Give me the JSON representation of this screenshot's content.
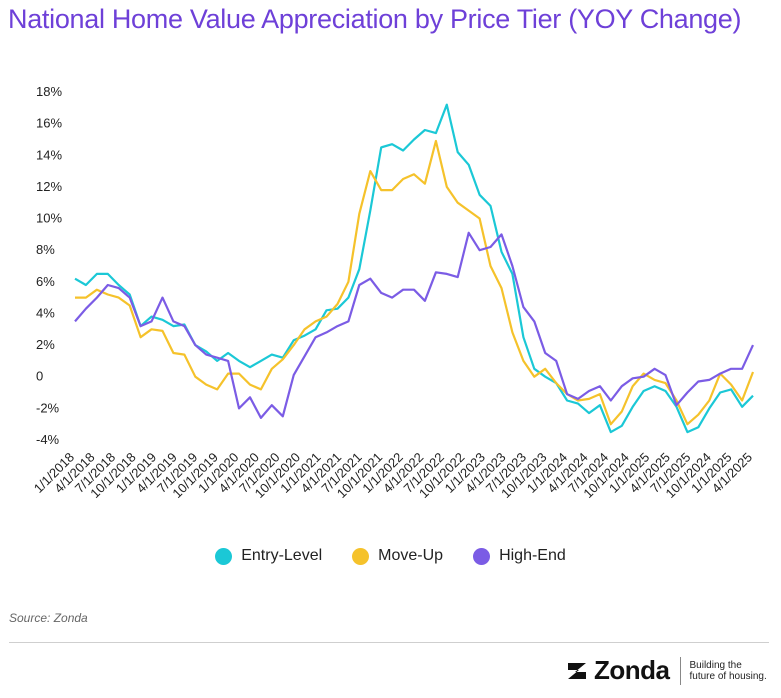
{
  "title": "National Home Value Appreciation by Price Tier (YOY Change)",
  "source": "Source: Zonda",
  "footer": {
    "brand": "Zonda",
    "tagline": "Building the future of housing.",
    "logo_icon": "zonda-z-mark-icon"
  },
  "legend": {
    "items": [
      {
        "label": "Entry-Level",
        "color": "#1bc8d6"
      },
      {
        "label": "Move-Up",
        "color": "#f5c22b"
      },
      {
        "label": "High-End",
        "color": "#7b5ce5"
      }
    ]
  },
  "chart_data": {
    "type": "line",
    "title": "National Home Value Appreciation by Price Tier (YOY Change)",
    "xlabel": "",
    "ylabel": "",
    "ylim": [
      -4,
      18
    ],
    "yticks": [
      -4,
      -2,
      0,
      2,
      4,
      6,
      8,
      10,
      12,
      14,
      16,
      18
    ],
    "ytick_labels": [
      "-4%",
      "-2%",
      "0",
      "2%",
      "4%",
      "6%",
      "8%",
      "10%",
      "12%",
      "14%",
      "16%",
      "18%"
    ],
    "x_tick_labels": [
      "1/1/2018",
      "4/1/2018",
      "7/1/2018",
      "10/1/2018",
      "1/1/2019",
      "4/1/2019",
      "7/1/2019",
      "10/1/2019",
      "1/1/2020",
      "4/1/2020",
      "7/1/2020",
      "10/1/2020",
      "1/1/2021",
      "4/1/2021",
      "7/1/2021",
      "10/1/2021",
      "1/1/2022",
      "4/1/2022",
      "7/1/2022",
      "10/1/2022",
      "1/1/2023",
      "4/1/2023",
      "7/1/2023",
      "10/1/2023",
      "1/1/2024",
      "4/1/2024",
      "7/1/2024",
      "10/1/2024",
      "1/1/2025",
      "4/1/2025",
      "7/1/2025",
      "10/1/2024",
      "1/1/2025",
      "4/1/2025"
    ],
    "grid": false,
    "legend_position": "bottom",
    "series": [
      {
        "name": "Entry-Level",
        "color": "#1bc8d6",
        "values": [
          6.2,
          5.8,
          6.5,
          6.5,
          5.8,
          5.2,
          3.2,
          3.8,
          3.6,
          3.2,
          3.3,
          2.0,
          1.6,
          1.0,
          1.5,
          1.0,
          0.6,
          1.0,
          1.4,
          1.2,
          2.3,
          2.6,
          3.0,
          4.2,
          4.3,
          5.0,
          6.8,
          10.5,
          14.5,
          14.7,
          14.3,
          15.0,
          15.6,
          15.4,
          17.2,
          14.2,
          13.4,
          11.5,
          10.8,
          7.9,
          6.5,
          2.5,
          0.5,
          0.0,
          -0.4,
          -1.5,
          -1.7,
          -2.3,
          -1.8,
          -3.5,
          -3.1,
          -1.9,
          -0.9,
          -0.6,
          -0.9,
          -1.9,
          -3.5,
          -3.2,
          -2.0,
          -1.0,
          -0.8,
          -1.9,
          -1.2
        ]
      },
      {
        "name": "Move-Up",
        "color": "#f5c22b",
        "values": [
          5.0,
          5.0,
          5.5,
          5.2,
          5.0,
          4.5,
          2.5,
          3.0,
          2.9,
          1.5,
          1.4,
          0.0,
          -0.5,
          -0.8,
          0.2,
          0.2,
          -0.5,
          -0.8,
          0.5,
          1.1,
          2.0,
          3.0,
          3.5,
          3.8,
          4.6,
          6.0,
          10.3,
          13.0,
          11.8,
          11.8,
          12.5,
          12.8,
          12.2,
          14.9,
          12.0,
          11.0,
          10.5,
          10.0,
          7.0,
          5.6,
          2.8,
          1.0,
          0.0,
          0.5,
          -0.4,
          -1.1,
          -1.5,
          -1.4,
          -1.1,
          -3.0,
          -2.2,
          -0.6,
          0.2,
          -0.2,
          -0.4,
          -1.5,
          -3.0,
          -2.4,
          -1.5,
          0.2,
          -0.5,
          -1.5,
          0.3
        ]
      },
      {
        "name": "High-End",
        "color": "#7b5ce5",
        "values": [
          3.5,
          4.3,
          5.0,
          5.8,
          5.6,
          5.0,
          3.2,
          3.5,
          5.0,
          3.5,
          3.2,
          2.0,
          1.4,
          1.2,
          1.0,
          -2.0,
          -1.3,
          -2.6,
          -1.8,
          -2.5,
          0.1,
          1.3,
          2.5,
          2.8,
          3.2,
          3.5,
          5.8,
          6.2,
          5.3,
          5.0,
          5.5,
          5.5,
          4.8,
          6.6,
          6.5,
          6.3,
          9.1,
          8.0,
          8.2,
          9.0,
          7.0,
          4.4,
          3.5,
          1.5,
          1.0,
          -1.1,
          -1.4,
          -0.9,
          -0.6,
          -1.5,
          -0.6,
          -0.1,
          0.0,
          0.5,
          0.1,
          -1.8,
          -1.0,
          -0.3,
          -0.2,
          0.2,
          0.5,
          0.5,
          2.0
        ]
      }
    ]
  }
}
